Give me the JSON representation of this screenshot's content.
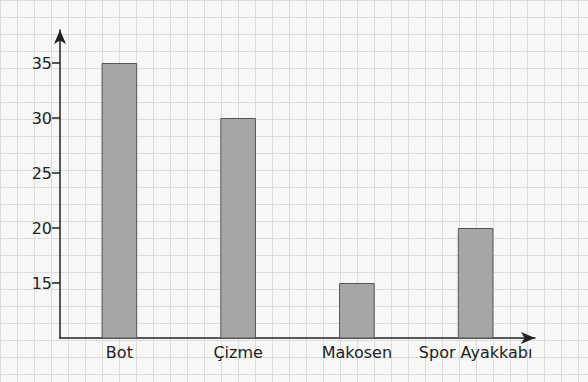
{
  "chart_data": {
    "type": "bar",
    "categories": [
      "Bot",
      "Çizme",
      "Makosen",
      "Spor Ayakkabı"
    ],
    "values": [
      35,
      30,
      15,
      20
    ],
    "color": "#a6a6a6",
    "ylim": [
      10,
      38
    ],
    "yticks": [
      15,
      20,
      25,
      30,
      35
    ],
    "grid": false
  }
}
